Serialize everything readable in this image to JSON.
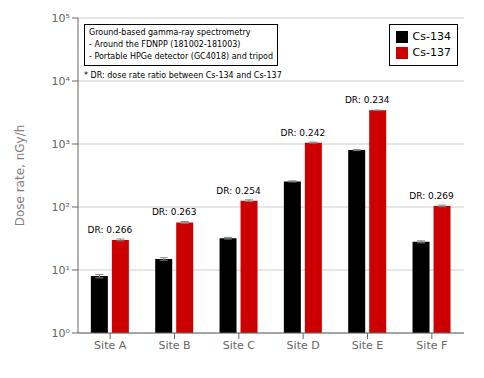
{
  "chart_data": {
    "type": "bar",
    "categories": [
      "Site A",
      "Site B",
      "Site C",
      "Site D",
      "Site E",
      "Site F"
    ],
    "series": [
      {
        "name": "Cs-134",
        "color": "#000000",
        "values": [
          8.0,
          15.0,
          32.0,
          255.0,
          800.0,
          28.0
        ],
        "errors": [
          0.5,
          0.7,
          1.0,
          5.0,
          15.0,
          1.0
        ]
      },
      {
        "name": "Cs-137",
        "color": "#cc0000",
        "values": [
          30.0,
          57.0,
          126.0,
          1050.0,
          3420.0,
          104.0
        ],
        "errors": [
          1.0,
          2.0,
          4.0,
          20.0,
          30.0,
          3.0
        ]
      }
    ],
    "ylabel": "Dose rate, nGy/h",
    "ylim": [
      1,
      100000
    ],
    "yticks": [
      {
        "value": 1,
        "label": "10⁰"
      },
      {
        "value": 10,
        "label": "10¹"
      },
      {
        "value": 100,
        "label": "10²"
      },
      {
        "value": 1000,
        "label": "10³"
      },
      {
        "value": 10000,
        "label": "10⁴"
      },
      {
        "value": 100000,
        "label": "10⁵"
      }
    ],
    "log": "y",
    "grid": true,
    "legend": "upper right",
    "annotations": [
      {
        "text": "DR: 0.266",
        "category": "Site A"
      },
      {
        "text": "DR: 0.263",
        "category": "Site B"
      },
      {
        "text": "DR: 0.254",
        "category": "Site C"
      },
      {
        "text": "DR: 0.242",
        "category": "Site D"
      },
      {
        "text": "DR: 0.234",
        "category": "Site E"
      },
      {
        "text": "DR: 0.269",
        "category": "Site F"
      },
      {
        "text": "Ground-based gamma-ray spectrometry\n- Around the FDNPP (181002-181003)\n- Portable HPGe detector (GC4018) and tripod"
      },
      {
        "text": "* DR: dose rate ratio between Cs-134 and Cs-137"
      }
    ]
  }
}
